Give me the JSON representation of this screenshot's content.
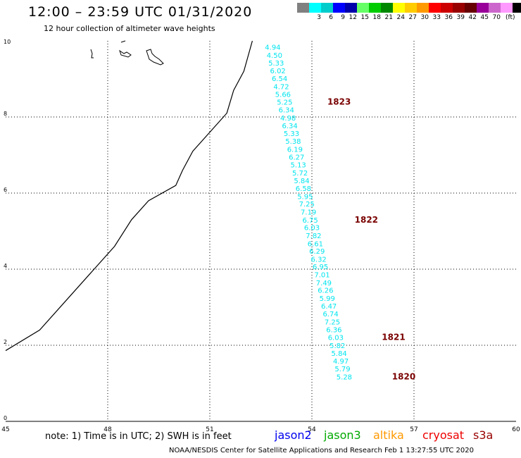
{
  "header": {
    "title": "12:00 – 23:59 UTC 01/31/2020",
    "subtitle": "12 hour collection of altimeter wave heights"
  },
  "color_scale": {
    "colors": [
      "#808080",
      "#00ffff",
      "#00cccc",
      "#0000ff",
      "#0000aa",
      "#66ff66",
      "#00cc00",
      "#008800",
      "#ffff00",
      "#ffcc00",
      "#ff9900",
      "#ff0000",
      "#cc0000",
      "#990000",
      "#660000",
      "#990099",
      "#cc66cc",
      "#ff99ff",
      "#000000"
    ],
    "labels": [
      "",
      "3",
      "6",
      "9",
      "12",
      "15",
      "18",
      "21",
      "24",
      "27",
      "30",
      "33",
      "36",
      "39",
      "42",
      "45",
      "70",
      "",
      ""
    ],
    "unit": "(ft)"
  },
  "map": {
    "x_ticks": [
      "45",
      "48",
      "51",
      "54",
      "57",
      "60"
    ],
    "y_ticks": [
      "0",
      "2",
      "4",
      "6",
      "8",
      "10"
    ],
    "x_range": [
      45,
      60
    ],
    "y_range": [
      0,
      10
    ]
  },
  "track": {
    "color": "#00e5ee",
    "label_color": "#7a0000",
    "points": [
      {
        "lon": 52.85,
        "lat": 9.84,
        "v": "4.94"
      },
      {
        "lon": 52.9,
        "lat": 9.63,
        "v": "4.50"
      },
      {
        "lon": 52.95,
        "lat": 9.43,
        "v": "5.33"
      },
      {
        "lon": 53.0,
        "lat": 9.22,
        "v": "6.02"
      },
      {
        "lon": 53.05,
        "lat": 9.02,
        "v": "6.54"
      },
      {
        "lon": 53.1,
        "lat": 8.81,
        "v": "4.72"
      },
      {
        "lon": 53.15,
        "lat": 8.6,
        "v": "5.66"
      },
      {
        "lon": 53.2,
        "lat": 8.4,
        "v": "5.25"
      },
      {
        "lon": 53.25,
        "lat": 8.19,
        "v": "6.34"
      },
      {
        "lon": 53.3,
        "lat": 7.98,
        "v": "4.98"
      },
      {
        "lon": 53.35,
        "lat": 7.78,
        "v": "6.34"
      },
      {
        "lon": 53.4,
        "lat": 7.57,
        "v": "5.33"
      },
      {
        "lon": 53.45,
        "lat": 7.37,
        "v": "5.38"
      },
      {
        "lon": 53.5,
        "lat": 7.16,
        "v": "6.19"
      },
      {
        "lon": 53.55,
        "lat": 6.95,
        "v": "6.27"
      },
      {
        "lon": 53.6,
        "lat": 6.75,
        "v": "5.13"
      },
      {
        "lon": 53.65,
        "lat": 6.54,
        "v": "5.72"
      },
      {
        "lon": 53.7,
        "lat": 6.33,
        "v": "5.84"
      },
      {
        "lon": 53.75,
        "lat": 6.13,
        "v": "6.58"
      },
      {
        "lon": 53.8,
        "lat": 5.92,
        "v": "5.95"
      },
      {
        "lon": 53.85,
        "lat": 5.72,
        "v": "7.25"
      },
      {
        "lon": 53.9,
        "lat": 5.51,
        "v": "7.19"
      },
      {
        "lon": 53.95,
        "lat": 5.3,
        "v": "6.75"
      },
      {
        "lon": 54.0,
        "lat": 5.1,
        "v": "6.03"
      },
      {
        "lon": 54.05,
        "lat": 4.89,
        "v": "7.82"
      },
      {
        "lon": 54.1,
        "lat": 4.68,
        "v": "6.61"
      },
      {
        "lon": 54.15,
        "lat": 4.48,
        "v": "6.29"
      },
      {
        "lon": 54.2,
        "lat": 4.27,
        "v": "6.32"
      },
      {
        "lon": 54.25,
        "lat": 4.07,
        "v": "6.95"
      },
      {
        "lon": 54.3,
        "lat": 3.86,
        "v": "7.01"
      },
      {
        "lon": 54.35,
        "lat": 3.65,
        "v": "7.49"
      },
      {
        "lon": 54.4,
        "lat": 3.45,
        "v": "6.26"
      },
      {
        "lon": 54.45,
        "lat": 3.24,
        "v": "5.99"
      },
      {
        "lon": 54.5,
        "lat": 3.04,
        "v": "6.47"
      },
      {
        "lon": 54.55,
        "lat": 2.83,
        "v": "6.74"
      },
      {
        "lon": 54.6,
        "lat": 2.62,
        "v": "7.25"
      },
      {
        "lon": 54.65,
        "lat": 2.42,
        "v": "6.36"
      },
      {
        "lon": 54.7,
        "lat": 2.21,
        "v": "6.03"
      },
      {
        "lon": 54.75,
        "lat": 2.0,
        "v": "5.82"
      },
      {
        "lon": 54.8,
        "lat": 1.8,
        "v": "5.84"
      },
      {
        "lon": 54.85,
        "lat": 1.59,
        "v": "4.97"
      },
      {
        "lon": 54.9,
        "lat": 1.39,
        "v": "5.79"
      },
      {
        "lon": 54.95,
        "lat": 1.18,
        "v": "5.28"
      }
    ],
    "times": [
      {
        "lon": 54.8,
        "lat": 8.4,
        "t": "1823"
      },
      {
        "lon": 55.6,
        "lat": 5.3,
        "t": "1822"
      },
      {
        "lon": 56.4,
        "lat": 2.21,
        "t": "1821"
      },
      {
        "lon": 56.7,
        "lat": 1.18,
        "t": "1820"
      }
    ]
  },
  "coast": [
    [
      45,
      1.86
    ],
    [
      46,
      2.4
    ],
    [
      46.8,
      3.2
    ],
    [
      47.6,
      4.0
    ],
    [
      48.2,
      4.6
    ],
    [
      48.7,
      5.3
    ],
    [
      49.2,
      5.8
    ],
    [
      50.0,
      6.2
    ],
    [
      50.2,
      6.6
    ],
    [
      50.5,
      7.1
    ],
    [
      51.0,
      7.6
    ],
    [
      51.5,
      8.1
    ],
    [
      51.7,
      8.7
    ],
    [
      52.0,
      9.2
    ],
    [
      52.25,
      10.0
    ]
  ],
  "footer": {
    "note": "note: 1) Time is in UTC; 2) SWH is in feet",
    "credit": "NOAA/NESDIS Center for Satellite Applications and Research    Feb  1 13:27:55 UTC 2020",
    "satellites": [
      {
        "name": "jason2",
        "color": "#0000ee"
      },
      {
        "name": "jason3",
        "color": "#00aa00"
      },
      {
        "name": "altika",
        "color": "#ff9900"
      },
      {
        "name": "cryosat",
        "color": "#ee0000"
      },
      {
        "name": "s3a",
        "color": "#990000"
      }
    ]
  }
}
